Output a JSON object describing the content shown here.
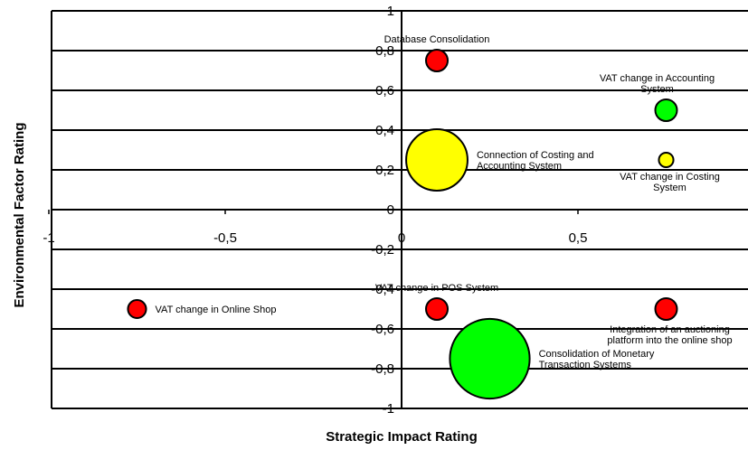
{
  "chart_data": {
    "type": "scatter",
    "xlabel": "Strategic Impact Rating",
    "ylabel": "Environmental Factor Rating",
    "xlim": [
      -1,
      1
    ],
    "ylim": [
      -1,
      1
    ],
    "x_ticks": [
      {
        "value": -1,
        "label": "-1"
      },
      {
        "value": -0.5,
        "label": "-0,5"
      },
      {
        "value": 0,
        "label": "0"
      },
      {
        "value": 0.5,
        "label": "0,5"
      }
    ],
    "y_ticks": [
      {
        "value": 1,
        "label": "1"
      },
      {
        "value": 0.8,
        "label": "0,8"
      },
      {
        "value": 0.6,
        "label": "0,6"
      },
      {
        "value": 0.4,
        "label": "0,4"
      },
      {
        "value": 0.2,
        "label": "0,2"
      },
      {
        "value": 0,
        "label": "0"
      },
      {
        "value": -0.2,
        "label": "-0,2"
      },
      {
        "value": -0.4,
        "label": "-0,4"
      },
      {
        "value": -0.6,
        "label": "-0,6"
      },
      {
        "value": -0.8,
        "label": "-0,8"
      },
      {
        "value": -1,
        "label": "-1"
      }
    ],
    "grid": {
      "horizontal": true,
      "vertical": false
    },
    "points": [
      {
        "label": [
          "Database Consolidation"
        ],
        "x": 0.1,
        "y": 0.75,
        "size": 1,
        "color": "#ff0000",
        "label_pos": "above"
      },
      {
        "label": [
          "VAT change in Accounting",
          "System"
        ],
        "x": 0.75,
        "y": 0.5,
        "size": 1,
        "color": "#00ff00",
        "label_pos": "above"
      },
      {
        "label": [
          "Connection of Costing and",
          "Accounting System"
        ],
        "x": 0.1,
        "y": 0.25,
        "size": 8,
        "color": "#ffff00",
        "label_pos": "right"
      },
      {
        "label": [
          "VAT change in Costing",
          "System"
        ],
        "x": 0.75,
        "y": 0.25,
        "size": 0.45,
        "color": "#ffff00",
        "label_pos": "below"
      },
      {
        "label": [
          "VAT change in Online Shop"
        ],
        "x": -0.75,
        "y": -0.5,
        "size": 0.7,
        "color": "#ff0000",
        "label_pos": "right"
      },
      {
        "label": [
          "VAT change in POS System"
        ],
        "x": 0.1,
        "y": -0.5,
        "size": 1,
        "color": "#ff0000",
        "label_pos": "above"
      },
      {
        "label": [
          "Integration of an auctioning",
          "platform into the online shop"
        ],
        "x": 0.75,
        "y": -0.5,
        "size": 1,
        "color": "#ff0000",
        "label_pos": "below"
      },
      {
        "label": [
          "Consolidation of Monetary",
          "Transaction Systems"
        ],
        "x": 0.25,
        "y": -0.75,
        "size": 13.5,
        "color": "#00ff00",
        "label_pos": "right"
      }
    ]
  }
}
